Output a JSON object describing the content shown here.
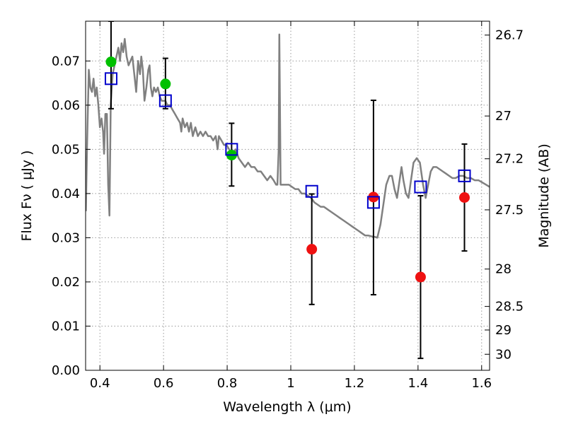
{
  "chart_data": {
    "type": "scatter",
    "xlabel": "Wavelength  λ (μm)",
    "ylabel": "Flux  Fν  ( μJy )",
    "ylabel_right": "Magnitude (AB)",
    "xlim": [
      0.355,
      1.625
    ],
    "ylim": [
      0.0,
      0.079
    ],
    "grid": true,
    "x_ticks": [
      {
        "value": 0.4,
        "label": "0.4"
      },
      {
        "value": 0.6,
        "label": "0.6"
      },
      {
        "value": 0.8,
        "label": "0.8"
      },
      {
        "value": 1.0,
        "label": "1"
      },
      {
        "value": 1.2,
        "label": "1.2"
      },
      {
        "value": 1.4,
        "label": "1.4"
      },
      {
        "value": 1.6,
        "label": "1.6"
      }
    ],
    "y_ticks": [
      {
        "value": 0.0,
        "label": "0.00"
      },
      {
        "value": 0.01,
        "label": "0.01"
      },
      {
        "value": 0.02,
        "label": "0.02"
      },
      {
        "value": 0.03,
        "label": "0.03"
      },
      {
        "value": 0.04,
        "label": "0.04"
      },
      {
        "value": 0.05,
        "label": "0.05"
      },
      {
        "value": 0.06,
        "label": "0.06"
      },
      {
        "value": 0.07,
        "label": "0.07"
      }
    ],
    "right_ticks": [
      {
        "value": 26.7,
        "label": "26.7"
      },
      {
        "value": 27.0,
        "label": "27"
      },
      {
        "value": 27.2,
        "label": "27.2"
      },
      {
        "value": 27.5,
        "label": "27.5"
      },
      {
        "value": 28.0,
        "label": "28"
      },
      {
        "value": 28.5,
        "label": "28.5"
      },
      {
        "value": 29.0,
        "label": "29"
      },
      {
        "value": 30.0,
        "label": "30"
      }
    ],
    "colors": {
      "model": "#808080",
      "green": "#00c000",
      "red": "#ee1111",
      "square": "#0000cc",
      "errorbar": "#000000",
      "grid": "#9a9a9a"
    },
    "model_spectrum": [
      [
        0.356,
        0.036
      ],
      [
        0.36,
        0.052
      ],
      [
        0.365,
        0.068
      ],
      [
        0.37,
        0.064
      ],
      [
        0.375,
        0.063
      ],
      [
        0.38,
        0.066
      ],
      [
        0.385,
        0.062
      ],
      [
        0.39,
        0.064
      ],
      [
        0.395,
        0.06
      ],
      [
        0.4,
        0.055
      ],
      [
        0.405,
        0.057
      ],
      [
        0.41,
        0.054
      ],
      [
        0.413,
        0.049
      ],
      [
        0.417,
        0.058
      ],
      [
        0.422,
        0.058
      ],
      [
        0.426,
        0.042
      ],
      [
        0.43,
        0.035
      ],
      [
        0.434,
        0.06
      ],
      [
        0.44,
        0.067
      ],
      [
        0.446,
        0.069
      ],
      [
        0.452,
        0.071
      ],
      [
        0.458,
        0.073
      ],
      [
        0.463,
        0.07
      ],
      [
        0.468,
        0.074
      ],
      [
        0.473,
        0.072
      ],
      [
        0.478,
        0.075
      ],
      [
        0.484,
        0.071
      ],
      [
        0.49,
        0.069
      ],
      [
        0.496,
        0.07
      ],
      [
        0.502,
        0.071
      ],
      [
        0.508,
        0.067
      ],
      [
        0.514,
        0.063
      ],
      [
        0.52,
        0.07
      ],
      [
        0.526,
        0.067
      ],
      [
        0.53,
        0.071
      ],
      [
        0.535,
        0.068
      ],
      [
        0.54,
        0.061
      ],
      [
        0.546,
        0.064
      ],
      [
        0.552,
        0.068
      ],
      [
        0.556,
        0.069
      ],
      [
        0.56,
        0.064
      ],
      [
        0.565,
        0.062
      ],
      [
        0.57,
        0.064
      ],
      [
        0.576,
        0.063
      ],
      [
        0.582,
        0.064
      ],
      [
        0.588,
        0.062
      ],
      [
        0.594,
        0.061
      ],
      [
        0.6,
        0.061
      ],
      [
        0.606,
        0.061
      ],
      [
        0.612,
        0.06
      ],
      [
        0.62,
        0.06
      ],
      [
        0.628,
        0.059
      ],
      [
        0.636,
        0.058
      ],
      [
        0.644,
        0.057
      ],
      [
        0.652,
        0.056
      ],
      [
        0.656,
        0.054
      ],
      [
        0.66,
        0.057
      ],
      [
        0.667,
        0.055
      ],
      [
        0.674,
        0.056
      ],
      [
        0.68,
        0.054
      ],
      [
        0.686,
        0.056
      ],
      [
        0.692,
        0.053
      ],
      [
        0.7,
        0.055
      ],
      [
        0.708,
        0.053
      ],
      [
        0.716,
        0.054
      ],
      [
        0.724,
        0.053
      ],
      [
        0.732,
        0.054
      ],
      [
        0.74,
        0.053
      ],
      [
        0.748,
        0.053
      ],
      [
        0.756,
        0.052
      ],
      [
        0.764,
        0.053
      ],
      [
        0.77,
        0.05
      ],
      [
        0.774,
        0.053
      ],
      [
        0.782,
        0.052
      ],
      [
        0.79,
        0.051
      ],
      [
        0.798,
        0.051
      ],
      [
        0.806,
        0.05
      ],
      [
        0.816,
        0.049
      ],
      [
        0.826,
        0.05
      ],
      [
        0.836,
        0.048
      ],
      [
        0.846,
        0.047
      ],
      [
        0.856,
        0.046
      ],
      [
        0.866,
        0.047
      ],
      [
        0.876,
        0.046
      ],
      [
        0.886,
        0.046
      ],
      [
        0.896,
        0.045
      ],
      [
        0.906,
        0.045
      ],
      [
        0.916,
        0.044
      ],
      [
        0.926,
        0.043
      ],
      [
        0.936,
        0.044
      ],
      [
        0.946,
        0.043
      ],
      [
        0.954,
        0.042
      ],
      [
        0.958,
        0.042
      ],
      [
        0.962,
        0.05
      ],
      [
        0.964,
        0.076
      ],
      [
        0.966,
        0.06
      ],
      [
        0.968,
        0.042
      ],
      [
        0.974,
        0.042
      ],
      [
        0.984,
        0.042
      ],
      [
        0.994,
        0.042
      ],
      [
        1.004,
        0.0415
      ],
      [
        1.014,
        0.041
      ],
      [
        1.024,
        0.041
      ],
      [
        1.034,
        0.04
      ],
      [
        1.044,
        0.04
      ],
      [
        1.054,
        0.0395
      ],
      [
        1.064,
        0.039
      ],
      [
        1.074,
        0.038
      ],
      [
        1.084,
        0.0375
      ],
      [
        1.094,
        0.037
      ],
      [
        1.104,
        0.037
      ],
      [
        1.114,
        0.0365
      ],
      [
        1.124,
        0.036
      ],
      [
        1.134,
        0.0355
      ],
      [
        1.144,
        0.035
      ],
      [
        1.154,
        0.0345
      ],
      [
        1.164,
        0.034
      ],
      [
        1.174,
        0.0335
      ],
      [
        1.184,
        0.033
      ],
      [
        1.194,
        0.0325
      ],
      [
        1.204,
        0.032
      ],
      [
        1.214,
        0.0315
      ],
      [
        1.224,
        0.031
      ],
      [
        1.234,
        0.0305
      ],
      [
        1.244,
        0.0305
      ],
      [
        1.254,
        0.0303
      ],
      [
        1.264,
        0.0302
      ],
      [
        1.272,
        0.03
      ],
      [
        1.282,
        0.033
      ],
      [
        1.292,
        0.038
      ],
      [
        1.3,
        0.042
      ],
      [
        1.31,
        0.044
      ],
      [
        1.318,
        0.044
      ],
      [
        1.326,
        0.041
      ],
      [
        1.334,
        0.039
      ],
      [
        1.342,
        0.043
      ],
      [
        1.348,
        0.046
      ],
      [
        1.354,
        0.043
      ],
      [
        1.362,
        0.04
      ],
      [
        1.37,
        0.039
      ],
      [
        1.378,
        0.043
      ],
      [
        1.386,
        0.047
      ],
      [
        1.396,
        0.048
      ],
      [
        1.406,
        0.047
      ],
      [
        1.416,
        0.042
      ],
      [
        1.424,
        0.039
      ],
      [
        1.432,
        0.042
      ],
      [
        1.44,
        0.045
      ],
      [
        1.448,
        0.046
      ],
      [
        1.458,
        0.046
      ],
      [
        1.468,
        0.0455
      ],
      [
        1.478,
        0.045
      ],
      [
        1.488,
        0.0445
      ],
      [
        1.498,
        0.044
      ],
      [
        1.508,
        0.0435
      ],
      [
        1.518,
        0.0435
      ],
      [
        1.53,
        0.044
      ],
      [
        1.542,
        0.044
      ],
      [
        1.554,
        0.0435
      ],
      [
        1.566,
        0.0435
      ],
      [
        1.578,
        0.043
      ],
      [
        1.59,
        0.043
      ],
      [
        1.602,
        0.0425
      ],
      [
        1.614,
        0.042
      ],
      [
        1.625,
        0.0415
      ]
    ],
    "model_points": [
      {
        "x": 0.435,
        "y": 0.066
      },
      {
        "x": 0.606,
        "y": 0.061
      },
      {
        "x": 0.814,
        "y": 0.05
      },
      {
        "x": 1.066,
        "y": 0.0405
      },
      {
        "x": 1.26,
        "y": 0.038
      },
      {
        "x": 1.408,
        "y": 0.0415
      },
      {
        "x": 1.546,
        "y": 0.044
      }
    ],
    "observed_points": [
      {
        "x": 0.435,
        "y": 0.0698,
        "err_low": 0.0592,
        "err_high": 0.079,
        "color": "green"
      },
      {
        "x": 0.606,
        "y": 0.0648,
        "err_low": 0.0592,
        "err_high": 0.0706,
        "color": "green"
      },
      {
        "x": 0.814,
        "y": 0.0487,
        "err_low": 0.0417,
        "err_high": 0.0559,
        "color": "green"
      },
      {
        "x": 1.066,
        "y": 0.0274,
        "err_low": 0.0149,
        "err_high": 0.0399,
        "color": "red"
      },
      {
        "x": 1.26,
        "y": 0.0392,
        "err_low": 0.0171,
        "err_high": 0.0611,
        "color": "red"
      },
      {
        "x": 1.408,
        "y": 0.0211,
        "err_low": 0.0027,
        "err_high": 0.0395,
        "color": "red"
      },
      {
        "x": 1.546,
        "y": 0.0391,
        "err_low": 0.027,
        "err_high": 0.0512,
        "color": "red"
      }
    ]
  }
}
